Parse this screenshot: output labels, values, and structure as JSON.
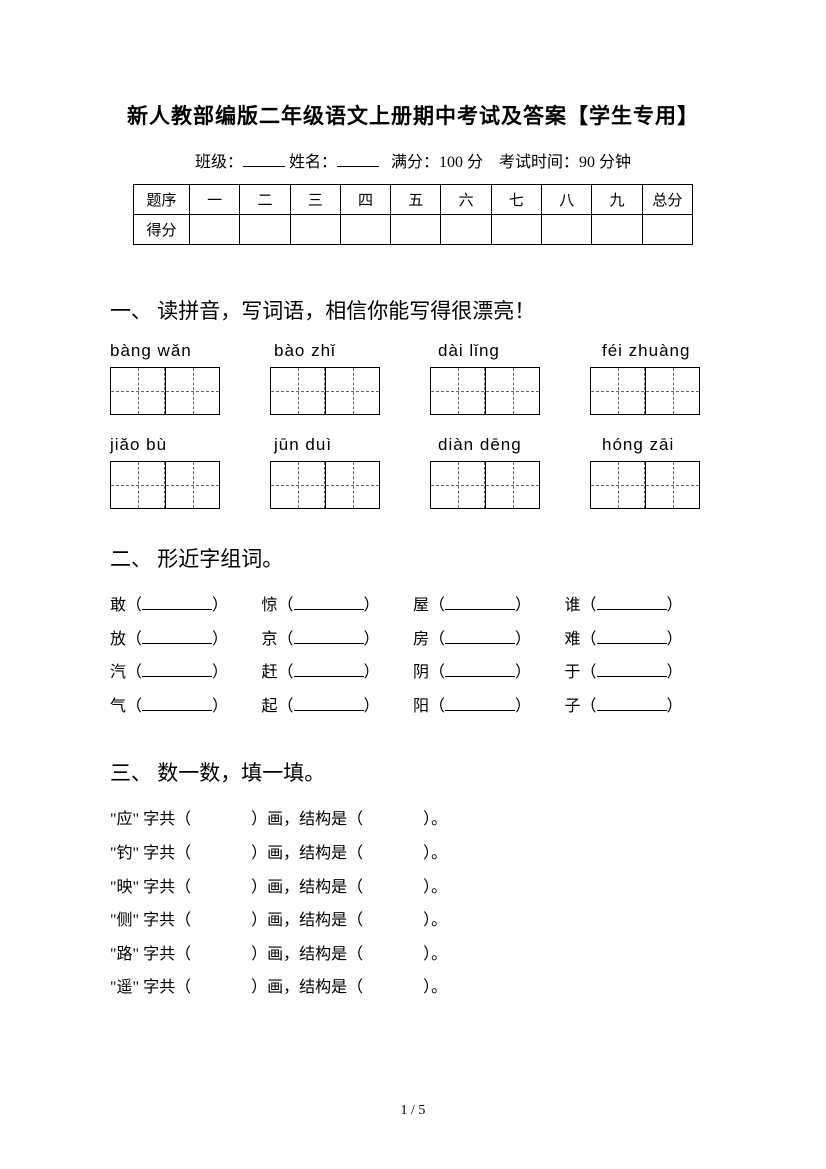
{
  "title": "新人教部编版二年级语文上册期中考试及答案【学生专用】",
  "header": {
    "class_label": "班级：",
    "name_label": "姓名：",
    "fullscore_label": "满分：",
    "fullscore_value": "100 分",
    "time_label": "考试时间：",
    "time_value": "90 分钟"
  },
  "score_table": {
    "row1": {
      "c0": "题序",
      "c1": "一",
      "c2": "二",
      "c3": "三",
      "c4": "四",
      "c5": "五",
      "c6": "六",
      "c7": "七",
      "c8": "八",
      "c9": "九",
      "c10": "总分"
    },
    "row2": {
      "c0": "得分"
    }
  },
  "section1": {
    "title": "一、 读拼音，写词语，相信你能写得很漂亮！",
    "row1": [
      "bàng   wǎn",
      "bào   zhǐ",
      "dài    lǐng",
      "féi zhuàng"
    ],
    "row2": [
      "jiǎo    bù",
      "jūn   duì",
      "diàn   dēng",
      "hóng zāi"
    ]
  },
  "section2": {
    "title": "二、 形近字组词。",
    "rows": [
      [
        "敢",
        "惊",
        "屋",
        "谁"
      ],
      [
        "放",
        "京",
        "房",
        "难"
      ],
      [
        "汽",
        "赶",
        "阴",
        "于"
      ],
      [
        "气",
        "起",
        "阳",
        "子"
      ]
    ]
  },
  "section3": {
    "title": "三、 数一数，填一填。",
    "chars": [
      "应",
      "钓",
      "映",
      "侧",
      "路",
      "遥"
    ],
    "template_pre": "字共（",
    "template_mid": "）画，结构是（",
    "template_post": "）。"
  },
  "footer": "1 / 5"
}
